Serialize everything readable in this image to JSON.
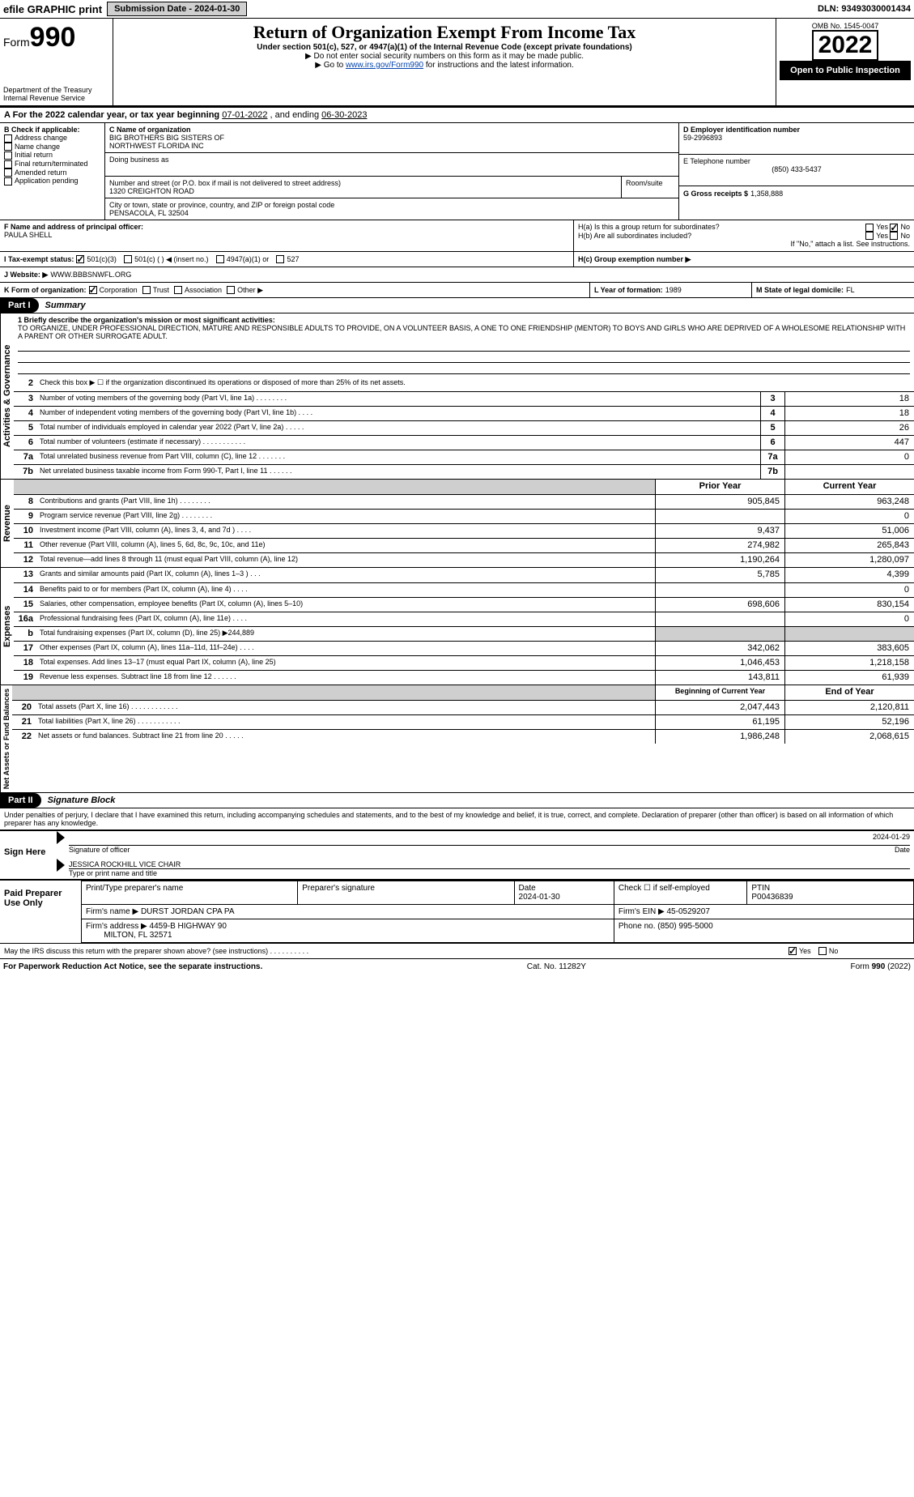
{
  "topbar": {
    "efile_label": "efile GRAPHIC print",
    "submission_label": "Submission Date - 2024-01-30",
    "dln_label": "DLN: 93493030001434"
  },
  "header": {
    "form_word": "Form",
    "form_num": "990",
    "dept1": "Department of the Treasury",
    "dept2": "Internal Revenue Service",
    "title": "Return of Organization Exempt From Income Tax",
    "subtitle": "Under section 501(c), 527, or 4947(a)(1) of the Internal Revenue Code (except private foundations)",
    "note1": "▶ Do not enter social security numbers on this form as it may be made public.",
    "note2_pre": "▶ Go to ",
    "note2_link": "www.irs.gov/Form990",
    "note2_post": " for instructions and the latest information.",
    "omb": "OMB No. 1545-0047",
    "year": "2022",
    "inspect": "Open to Public Inspection"
  },
  "A": {
    "text_pre": "A For the 2022 calendar year, or tax year beginning ",
    "begin": "07-01-2022",
    "mid": " , and ending ",
    "end": "06-30-2023"
  },
  "B": {
    "label": "B Check if applicable:",
    "opts": [
      "Address change",
      "Name change",
      "Initial return",
      "Final return/terminated",
      "Amended return",
      "Application pending"
    ]
  },
  "C": {
    "name_label": "C Name of organization",
    "name1": "BIG BROTHERS BIG SISTERS OF",
    "name2": "NORTHWEST FLORIDA INC",
    "dba_label": "Doing business as",
    "addr_label": "Number and street (or P.O. box if mail is not delivered to street address)",
    "room_label": "Room/suite",
    "addr": "1320 CREIGHTON ROAD",
    "city_label": "City or town, state or province, country, and ZIP or foreign postal code",
    "city": "PENSACOLA, FL  32504"
  },
  "D": {
    "label": "D Employer identification number",
    "val": "59-2996893"
  },
  "E": {
    "label": "E Telephone number",
    "val": "(850) 433-5437"
  },
  "G": {
    "label": "G Gross receipts $",
    "val": "1,358,888"
  },
  "F": {
    "label": "F Name and address of principal officer:",
    "name": "PAULA SHELL"
  },
  "H": {
    "a": "H(a)  Is this a group return for subordinates?",
    "b": "H(b)  Are all subordinates included?",
    "b_note": "If \"No,\" attach a list. See instructions.",
    "c": "H(c)  Group exemption number ▶",
    "yes": "Yes",
    "no": "No"
  },
  "I": {
    "label": "I   Tax-exempt status:",
    "o1": "501(c)(3)",
    "o2": "501(c) (   ) ◀ (insert no.)",
    "o3": "4947(a)(1) or",
    "o4": "527"
  },
  "J": {
    "label": "J   Website: ▶",
    "val": "WWW.BBBSNWFL.ORG"
  },
  "K": {
    "label": "K Form of organization:",
    "o1": "Corporation",
    "o2": "Trust",
    "o3": "Association",
    "o4": "Other ▶"
  },
  "L": {
    "label": "L Year of formation:",
    "val": "1989"
  },
  "M": {
    "label": "M State of legal domicile:",
    "val": "FL"
  },
  "part1": {
    "label": "Part I",
    "title": "Summary",
    "q1": "1  Briefly describe the organization's mission or most significant activities:",
    "mission": "TO ORGANIZE, UNDER PROFESSIONAL DIRECTION, MATURE AND RESPONSIBLE ADULTS TO PROVIDE, ON A VOLUNTEER BASIS, A ONE TO ONE FRIENDSHIP (MENTOR) TO BOYS AND GIRLS WHO ARE DEPRIVED OF A WHOLESOME RELATIONSHIP WITH A PARENT OR OTHER SURROGATE ADULT.",
    "q2": "Check this box ▶ ☐ if the organization discontinued its operations or disposed of more than 25% of its net assets.",
    "lines_gov": [
      {
        "n": "3",
        "t": "Number of voting members of the governing body (Part VI, line 1a)  .    .    .    .    .    .    .    .",
        "box": "3",
        "v": "18"
      },
      {
        "n": "4",
        "t": "Number of independent voting members of the governing body (Part VI, line 1b)   .    .    .    .",
        "box": "4",
        "v": "18"
      },
      {
        "n": "5",
        "t": "Total number of individuals employed in calendar year 2022 (Part V, line 2a)   .    .    .    .    .",
        "box": "5",
        "v": "26"
      },
      {
        "n": "6",
        "t": "Total number of volunteers (estimate if necessary)    .    .    .    .    .    .    .    .    .    .    .",
        "box": "6",
        "v": "447"
      },
      {
        "n": "7a",
        "t": "Total unrelated business revenue from Part VIII, column (C), line 12    .    .    .    .    .    .    .",
        "box": "7a",
        "v": "0"
      },
      {
        "n": "7b",
        "t": "Net unrelated business taxable income from Form 990-T, Part I, line 11   .    .    .    .    .    .",
        "box": "7b",
        "v": ""
      }
    ],
    "hdr_prior": "Prior Year",
    "hdr_curr": "Current Year",
    "rev": [
      {
        "n": "8",
        "t": "Contributions and grants (Part VIII, line 1h)    .    .    .    .    .    .    .    .",
        "p": "905,845",
        "c": "963,248"
      },
      {
        "n": "9",
        "t": "Program service revenue (Part VIII, line 2g)     .    .    .    .    .    .    .    .",
        "p": "",
        "c": "0"
      },
      {
        "n": "10",
        "t": "Investment income (Part VIII, column (A), lines 3, 4, and 7d )   .    .    .    .",
        "p": "9,437",
        "c": "51,006"
      },
      {
        "n": "11",
        "t": "Other revenue (Part VIII, column (A), lines 5, 6d, 8c, 9c, 10c, and 11e)",
        "p": "274,982",
        "c": "265,843"
      },
      {
        "n": "12",
        "t": "Total revenue—add lines 8 through 11 (must equal Part VIII, column (A), line 12)",
        "p": "1,190,264",
        "c": "1,280,097"
      }
    ],
    "exp": [
      {
        "n": "13",
        "t": "Grants and similar amounts paid (Part IX, column (A), lines 1–3 )   .    .    .",
        "p": "5,785",
        "c": "4,399"
      },
      {
        "n": "14",
        "t": "Benefits paid to or for members (Part IX, column (A), line 4)   .    .    .    .",
        "p": "",
        "c": "0"
      },
      {
        "n": "15",
        "t": "Salaries, other compensation, employee benefits (Part IX, column (A), lines 5–10)",
        "p": "698,606",
        "c": "830,154"
      },
      {
        "n": "16a",
        "t": "Professional fundraising fees (Part IX, column (A), line 11e)    .    .    .    .",
        "p": "",
        "c": "0"
      },
      {
        "n": "b",
        "t": "Total fundraising expenses (Part IX, column (D), line 25) ▶244,889",
        "p": null,
        "c": null
      },
      {
        "n": "17",
        "t": "Other expenses (Part IX, column (A), lines 11a–11d, 11f–24e)    .    .    .    .",
        "p": "342,062",
        "c": "383,605"
      },
      {
        "n": "18",
        "t": "Total expenses. Add lines 13–17 (must equal Part IX, column (A), line 25)",
        "p": "1,046,453",
        "c": "1,218,158"
      },
      {
        "n": "19",
        "t": "Revenue less expenses. Subtract line 18 from line 12   .    .    .    .    .    .",
        "p": "143,811",
        "c": "61,939"
      }
    ],
    "hdr_begin": "Beginning of Current Year",
    "hdr_endyr": "End of Year",
    "net": [
      {
        "n": "20",
        "t": "Total assets (Part X, line 16)   .    .    .    .    .    .    .    .    .    .    .    .",
        "p": "2,047,443",
        "c": "2,120,811"
      },
      {
        "n": "21",
        "t": "Total liabilities (Part X, line 26)    .    .    .    .    .    .    .    .    .    .    .",
        "p": "61,195",
        "c": "52,196"
      },
      {
        "n": "22",
        "t": "Net assets or fund balances. Subtract line 21 from line 20   .    .    .    .    .",
        "p": "1,986,248",
        "c": "2,068,615"
      }
    ],
    "vlabels": {
      "gov": "Activities & Governance",
      "rev": "Revenue",
      "exp": "Expenses",
      "net": "Net Assets or Fund Balances"
    }
  },
  "part2": {
    "label": "Part II",
    "title": "Signature Block",
    "decl": "Under penalties of perjury, I declare that I have examined this return, including accompanying schedules and statements, and to the best of my knowledge and belief, it is true, correct, and complete. Declaration of preparer (other than officer) is based on all information of which preparer has any knowledge."
  },
  "sign": {
    "here": "Sign Here",
    "sig_label": "Signature of officer",
    "date_label": "Date",
    "date_val": "2024-01-29",
    "name": "JESSICA ROCKHILL  VICE CHAIR",
    "name_label": "Type or print name and title"
  },
  "paid": {
    "label": "Paid Preparer Use Only",
    "c1": "Print/Type preparer's name",
    "c2": "Preparer's signature",
    "c3_l": "Date",
    "c3_v": "2024-01-30",
    "c4_l": "Check ☐ if self-employed",
    "c5_l": "PTIN",
    "c5_v": "P00436839",
    "firm_l": "Firm's name    ▶",
    "firm_v": "DURST JORDAN CPA PA",
    "ein_l": "Firm's EIN ▶",
    "ein_v": "45-0529207",
    "addr_l": "Firm's address ▶",
    "addr1": "4459-B HIGHWAY 90",
    "addr2": "MILTON, FL  32571",
    "phone_l": "Phone no.",
    "phone_v": "(850) 995-5000"
  },
  "discuss": {
    "q": "May the IRS discuss this return with the preparer shown above? (see instructions)    .    .    .    .    .    .    .    .    .    .",
    "yes": "Yes",
    "no": "No"
  },
  "footer": {
    "left": "For Paperwork Reduction Act Notice, see the separate instructions.",
    "mid": "Cat. No. 11282Y",
    "right": "Form 990 (2022)"
  }
}
